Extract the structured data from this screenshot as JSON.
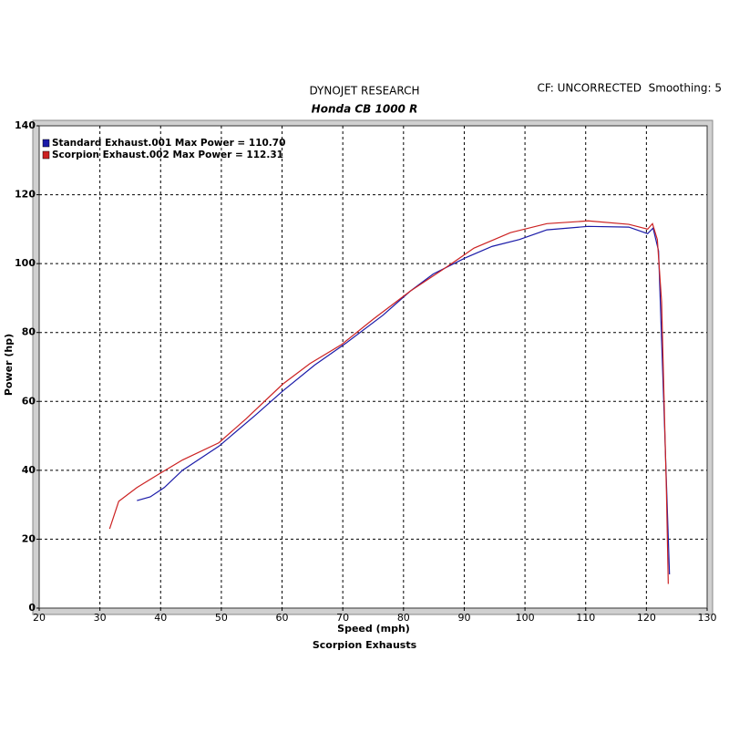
{
  "chart_data": {
    "type": "line",
    "title": "DYNOJET RESEARCH",
    "subtitle": "Honda CB 1000 R",
    "annotation": "CF: UNCORRECTED  Smoothing: 5",
    "x_label": "Speed (mph)",
    "y_label": "Power (hp)",
    "footer": "Scorpion Exhausts",
    "xlim": [
      20,
      130
    ],
    "ylim": [
      0,
      140
    ],
    "xticks": [
      20,
      30,
      40,
      50,
      60,
      70,
      80,
      90,
      100,
      110,
      120,
      130
    ],
    "yticks": [
      0,
      20,
      40,
      60,
      80,
      100,
      120,
      140
    ],
    "grid": true,
    "legend": "top-left",
    "series": [
      {
        "name": "Standard Exhaust.001 Max Power = 110.70",
        "color": "#1a1aa8",
        "x": [
          36.1,
          38.3,
          40.6,
          43.6,
          49.6,
          55.6,
          60.1,
          65.4,
          70.6,
          76.6,
          81.1,
          84.9,
          90.1,
          94.6,
          99.1,
          103.6,
          110.4,
          117.1,
          120.2,
          121.1,
          122,
          122.9,
          123.8
        ],
        "values": [
          31.2,
          32.3,
          35,
          40,
          47,
          56,
          63,
          70.6,
          77,
          85,
          92,
          97,
          101.6,
          105,
          107,
          109.8,
          110.8,
          110.6,
          108.7,
          110.3,
          103.7,
          57.4,
          9.8
        ]
      },
      {
        "name": "Scorpion Exhaust.002 Max Power = 112.31",
        "color": "#cc2222",
        "x": [
          31.6,
          33.1,
          36.1,
          39.8,
          43.6,
          49.6,
          54.1,
          60.1,
          64.6,
          69.8,
          75.1,
          81.1,
          87.1,
          91.6,
          97.6,
          103.6,
          110.4,
          117.1,
          120.2,
          121,
          121.8,
          122.5,
          123.3,
          123.6
        ],
        "values": [
          23,
          31,
          35,
          39,
          43,
          48,
          55,
          65,
          71,
          76.5,
          84,
          92,
          99,
          104.5,
          109,
          111.6,
          112.4,
          111.4,
          110,
          111.6,
          107,
          89,
          33.6,
          7
        ]
      }
    ]
  }
}
